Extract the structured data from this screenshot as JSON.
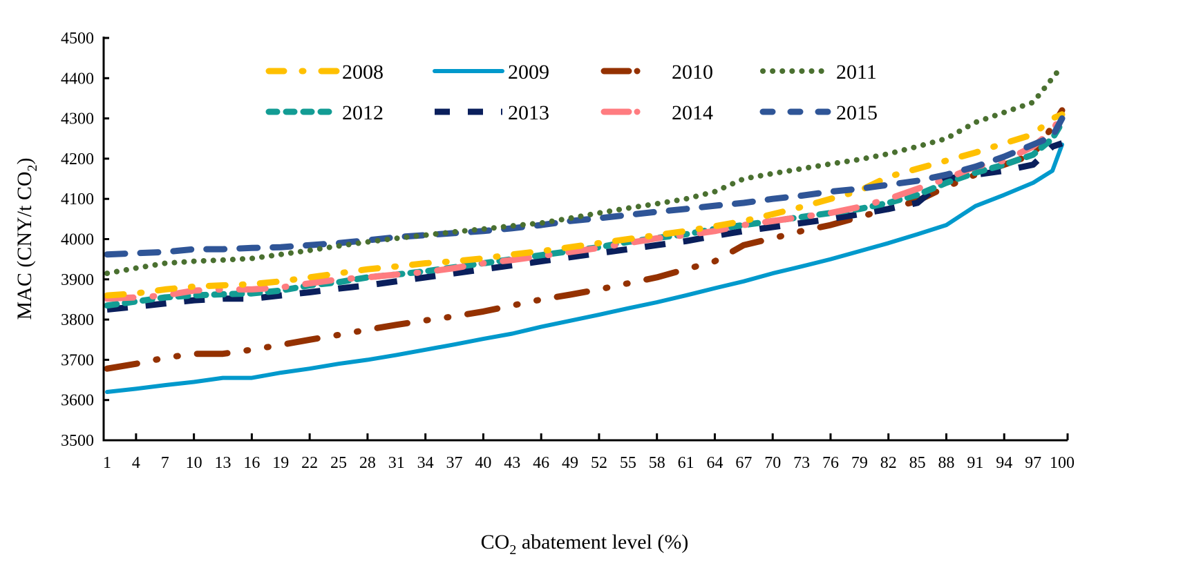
{
  "chart_data": {
    "type": "line",
    "title": "",
    "xlabel": "CO2 abatement level (%)",
    "xlabel_parts": {
      "pre": "CO",
      "sub": "2",
      "post": " abatement level (%)"
    },
    "ylabel": "MAC (CNY/t CO2)",
    "ylabel_parts": {
      "pre": "MAC (CNY/t CO",
      "sub": "2",
      "post": ")"
    },
    "xlim": [
      1,
      100
    ],
    "ylim": [
      3500,
      4500
    ],
    "yticks": [
      3500,
      3600,
      3700,
      3800,
      3900,
      4000,
      4100,
      4200,
      4300,
      4400,
      4500
    ],
    "xticks": [
      1,
      4,
      7,
      10,
      13,
      16,
      19,
      22,
      25,
      28,
      31,
      34,
      37,
      40,
      43,
      46,
      49,
      52,
      55,
      58,
      61,
      64,
      67,
      70,
      73,
      76,
      79,
      82,
      85,
      88,
      91,
      94,
      97,
      100
    ],
    "grid": false,
    "legend": {
      "placement": "top-center",
      "columns": 4
    },
    "x": [
      1,
      4,
      7,
      10,
      13,
      16,
      19,
      22,
      25,
      28,
      31,
      34,
      37,
      40,
      43,
      46,
      49,
      52,
      55,
      58,
      61,
      64,
      67,
      70,
      73,
      76,
      79,
      82,
      85,
      88,
      91,
      94,
      97,
      99,
      100
    ],
    "series": [
      {
        "name": "2008",
        "color": "#FFC000",
        "dash": "dashdot",
        "values": [
          3860,
          3865,
          3875,
          3882,
          3885,
          3888,
          3895,
          3905,
          3915,
          3925,
          3932,
          3940,
          3945,
          3952,
          3962,
          3970,
          3980,
          3990,
          4000,
          4010,
          4020,
          4032,
          4045,
          4062,
          4080,
          4100,
          4120,
          4155,
          4175,
          4195,
          4215,
          4238,
          4260,
          4300,
          4310
        ]
      },
      {
        "name": "2009",
        "color": "#0099CC",
        "dash": "solid",
        "values": [
          3620,
          3628,
          3637,
          3645,
          3655,
          3655,
          3668,
          3678,
          3690,
          3700,
          3712,
          3725,
          3738,
          3752,
          3765,
          3782,
          3797,
          3812,
          3828,
          3843,
          3860,
          3878,
          3895,
          3915,
          3932,
          3950,
          3970,
          3990,
          4012,
          4035,
          4082,
          4110,
          4140,
          4170,
          4235
        ]
      },
      {
        "name": "2010",
        "color": "#943100",
        "dash": "longdashdot",
        "values": [
          3678,
          3690,
          3705,
          3715,
          3715,
          3725,
          3737,
          3750,
          3762,
          3775,
          3787,
          3798,
          3808,
          3820,
          3835,
          3850,
          3862,
          3875,
          3890,
          3905,
          3925,
          3945,
          3985,
          4002,
          4020,
          4035,
          4055,
          4075,
          4095,
          4130,
          4160,
          4185,
          4210,
          4280,
          4320
        ]
      },
      {
        "name": "2011",
        "color": "#4A7030",
        "dash": "dotted",
        "values": [
          3915,
          3928,
          3940,
          3945,
          3948,
          3952,
          3962,
          3972,
          3983,
          3993,
          4002,
          4010,
          4018,
          4025,
          4033,
          4040,
          4052,
          4065,
          4077,
          4088,
          4100,
          4118,
          4150,
          4163,
          4175,
          4187,
          4198,
          4212,
          4230,
          4250,
          4290,
          4315,
          4340,
          4400,
          4430
        ]
      },
      {
        "name": "2012",
        "color": "#139C94",
        "dash": "dashed",
        "values": [
          3835,
          3845,
          3855,
          3860,
          3863,
          3865,
          3872,
          3885,
          3893,
          3905,
          3912,
          3920,
          3930,
          3940,
          3950,
          3960,
          3970,
          3980,
          3993,
          4003,
          4012,
          4025,
          4035,
          4045,
          4055,
          4065,
          4075,
          4090,
          4110,
          4140,
          4165,
          4185,
          4210,
          4250,
          4290
        ]
      },
      {
        "name": "2013",
        "color": "#0A1F5C",
        "dash": "longdash",
        "values": [
          3825,
          3832,
          3840,
          3848,
          3852,
          3852,
          3860,
          3868,
          3877,
          3885,
          3895,
          3905,
          3915,
          3925,
          3935,
          3945,
          3955,
          3965,
          3975,
          3985,
          3995,
          4008,
          4020,
          4030,
          4040,
          4050,
          4062,
          4075,
          4090,
          4150,
          4160,
          4170,
          4185,
          4230,
          4238
        ]
      },
      {
        "name": "2014",
        "color": "#FF7C80",
        "dash": "longdashdot",
        "values": [
          3852,
          3855,
          3860,
          3872,
          3875,
          3875,
          3880,
          3890,
          3900,
          3905,
          3912,
          3918,
          3928,
          3940,
          3948,
          3958,
          3968,
          3978,
          3990,
          4002,
          4010,
          4020,
          4035,
          4045,
          4055,
          4065,
          4080,
          4100,
          4125,
          4150,
          4180,
          4195,
          4230,
          4270,
          4310
        ]
      },
      {
        "name": "2015",
        "color": "#2F5597",
        "dash": "dashed",
        "values": [
          3962,
          3965,
          3968,
          3975,
          3975,
          3978,
          3980,
          3985,
          3990,
          3997,
          4005,
          4010,
          4015,
          4020,
          4027,
          4035,
          4045,
          4052,
          4060,
          4068,
          4075,
          4083,
          4090,
          4100,
          4108,
          4118,
          4125,
          4135,
          4145,
          4160,
          4180,
          4205,
          4235,
          4255,
          4300
        ]
      }
    ]
  }
}
